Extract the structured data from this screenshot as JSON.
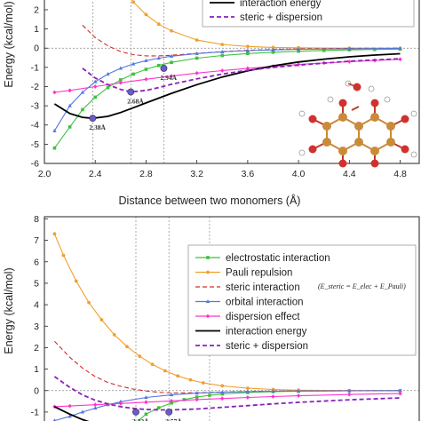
{
  "colors": {
    "electrostatic": "#3cc23c",
    "pauli": "#f0a030",
    "steric": "#d62a2a",
    "orbital": "#5577dd",
    "dispersion": "#ff33cc",
    "interaction": "#000000",
    "steric_dispersion": "#8822bb",
    "minimum_marker": "#6a5acd"
  },
  "chart_data": [
    {
      "type": "line",
      "xlabel": "Distance between two monomers (Å)",
      "ylabel": "Energy (kcal/mol)",
      "xlim": [
        2.0,
        4.95
      ],
      "ylim": [
        -6,
        2.6
      ],
      "xticks": [
        "2.0",
        "2.4",
        "2.8",
        "3.2",
        "3.6",
        "4.0",
        "4.4",
        "4.8"
      ],
      "yticks": [
        "2",
        "1",
        "0",
        "-1",
        "-2",
        "-3",
        "-4",
        "-5",
        "-6"
      ],
      "legend": [
        "interaction energy",
        "steric + dispersion"
      ],
      "legend_position": "top-right",
      "annotations": [
        {
          "text": "2.38Å",
          "x": 2.38,
          "y": -3.65
        },
        {
          "text": "2.68Å",
          "x": 2.68,
          "y": -2.28
        },
        {
          "text": "2.94Å",
          "x": 2.94,
          "y": -1.05
        }
      ],
      "vlines": [
        2.38,
        2.68,
        2.94
      ],
      "series": [
        {
          "key": "electrostatic",
          "style": "solid",
          "marker": "square",
          "x": [
            2.08,
            2.2,
            2.3,
            2.4,
            2.5,
            2.6,
            2.7,
            2.8,
            2.9,
            3.0,
            3.2,
            3.4,
            3.6,
            3.8,
            4.0,
            4.2,
            4.4,
            4.6,
            4.8
          ],
          "y": [
            -5.2,
            -4.1,
            -3.2,
            -2.55,
            -2.05,
            -1.65,
            -1.35,
            -1.1,
            -0.9,
            -0.74,
            -0.52,
            -0.38,
            -0.28,
            -0.21,
            -0.16,
            -0.12,
            -0.09,
            -0.07,
            -0.05
          ]
        },
        {
          "key": "pauli",
          "style": "solid",
          "marker": "circle",
          "x": [
            2.6,
            2.7,
            2.8,
            2.9,
            3.0,
            3.2,
            3.4,
            3.6,
            3.8,
            4.0,
            4.4,
            4.8
          ],
          "y": [
            3.1,
            2.4,
            1.75,
            1.25,
            0.9,
            0.42,
            0.19,
            0.09,
            0.04,
            0.02,
            0.0,
            0.0
          ]
        },
        {
          "key": "steric",
          "style": "dashed",
          "marker": "none",
          "x": [
            2.3,
            2.4,
            2.5,
            2.6,
            2.7,
            2.8,
            2.9,
            3.0,
            3.2,
            3.4,
            3.6,
            3.8,
            4.0,
            4.4,
            4.8
          ],
          "y": [
            1.2,
            0.55,
            0.12,
            -0.18,
            -0.34,
            -0.4,
            -0.4,
            -0.37,
            -0.27,
            -0.18,
            -0.11,
            -0.07,
            -0.04,
            -0.01,
            0.0
          ]
        },
        {
          "key": "orbital",
          "style": "solid",
          "marker": "triangle",
          "x": [
            2.08,
            2.2,
            2.3,
            2.4,
            2.5,
            2.6,
            2.7,
            2.8,
            2.9,
            3.0,
            3.2,
            3.4,
            3.6,
            3.8,
            4.0,
            4.4,
            4.8
          ],
          "y": [
            -4.3,
            -3.0,
            -2.3,
            -1.75,
            -1.35,
            -1.05,
            -0.82,
            -0.65,
            -0.52,
            -0.42,
            -0.28,
            -0.19,
            -0.13,
            -0.09,
            -0.06,
            -0.03,
            -0.01
          ]
        },
        {
          "key": "dispersion",
          "style": "solid",
          "marker": "diamond",
          "x": [
            2.08,
            2.2,
            2.4,
            2.6,
            2.8,
            3.0,
            3.2,
            3.4,
            3.6,
            3.8,
            4.0,
            4.2,
            4.4,
            4.6,
            4.8
          ],
          "y": [
            -2.3,
            -2.2,
            -2.0,
            -1.8,
            -1.62,
            -1.45,
            -1.3,
            -1.17,
            -1.05,
            -0.95,
            -0.85,
            -0.77,
            -0.7,
            -0.64,
            -0.58
          ]
        },
        {
          "key": "interaction",
          "style": "solid",
          "marker": "none",
          "x": [
            2.08,
            2.2,
            2.3,
            2.38,
            2.5,
            2.6,
            2.7,
            2.8,
            2.9,
            3.0,
            3.2,
            3.4,
            3.6,
            3.8,
            4.0,
            4.2,
            4.4,
            4.6,
            4.8
          ],
          "y": [
            -2.9,
            -3.4,
            -3.6,
            -3.65,
            -3.55,
            -3.35,
            -3.1,
            -2.85,
            -2.6,
            -2.35,
            -1.9,
            -1.5,
            -1.18,
            -0.92,
            -0.72,
            -0.57,
            -0.45,
            -0.36,
            -0.29
          ]
        },
        {
          "key": "steric_dispersion",
          "style": "dashed",
          "marker": "none",
          "x": [
            2.3,
            2.4,
            2.5,
            2.6,
            2.68,
            2.8,
            2.9,
            3.0,
            3.2,
            3.4,
            3.6,
            3.8,
            4.0,
            4.4,
            4.8
          ],
          "y": [
            -1.05,
            -1.55,
            -1.9,
            -2.15,
            -2.28,
            -2.2,
            -2.05,
            -1.88,
            -1.6,
            -1.35,
            -1.15,
            -1.0,
            -0.88,
            -0.68,
            -0.55
          ]
        }
      ]
    },
    {
      "type": "line",
      "xlabel": "",
      "ylabel": "Energy (kcal/mol)",
      "xlim": [
        2.0,
        4.95
      ],
      "ylim": [
        -1.5,
        8.1
      ],
      "yticks": [
        "8",
        "7",
        "6",
        "5",
        "4",
        "3",
        "2",
        "1",
        "0",
        "-1"
      ],
      "legend": [
        "electrostatic interaction",
        "Pauli repulsion",
        "steric interaction",
        "orbital interaction",
        "dispersion effect",
        "interaction energy",
        "steric + dispersion"
      ],
      "legend_formula": "(E_steric = E_elec + E_Pauli)",
      "legend_position": "right",
      "annotations": [
        {
          "text": "3.32Å",
          "x": 2.72,
          "y": -1.0
        },
        {
          "text": "3.57Å",
          "x": 2.98,
          "y": -1.0
        }
      ],
      "vlines": [
        2.72,
        2.98,
        3.3
      ],
      "series": [
        {
          "key": "electrostatic",
          "style": "solid",
          "marker": "square",
          "x": [
            2.72,
            2.8,
            2.9,
            3.0,
            3.1,
            3.2,
            3.3,
            3.4,
            3.6,
            3.8,
            4.0,
            4.4,
            4.8
          ],
          "y": [
            -1.5,
            -1.1,
            -0.8,
            -0.58,
            -0.42,
            -0.3,
            -0.22,
            -0.16,
            -0.09,
            -0.05,
            -0.03,
            -0.01,
            0.0
          ]
        },
        {
          "key": "pauli",
          "style": "solid",
          "marker": "circle",
          "x": [
            2.08,
            2.15,
            2.25,
            2.35,
            2.45,
            2.55,
            2.65,
            2.75,
            2.85,
            2.95,
            3.05,
            3.15,
            3.25,
            3.4,
            3.6,
            3.8,
            4.0,
            4.4,
            4.8
          ],
          "y": [
            7.3,
            6.3,
            5.1,
            4.1,
            3.3,
            2.6,
            2.05,
            1.6,
            1.22,
            0.92,
            0.68,
            0.5,
            0.36,
            0.22,
            0.11,
            0.05,
            0.02,
            0.0,
            0.0
          ]
        },
        {
          "key": "steric",
          "style": "dashed",
          "marker": "none",
          "x": [
            2.08,
            2.2,
            2.3,
            2.4,
            2.5,
            2.6,
            2.7,
            2.8,
            2.9,
            3.0,
            3.2,
            3.4,
            3.6,
            4.0,
            4.4,
            4.8
          ],
          "y": [
            2.3,
            1.55,
            1.05,
            0.65,
            0.38,
            0.2,
            0.07,
            -0.02,
            -0.08,
            -0.11,
            -0.1,
            -0.07,
            -0.04,
            -0.01,
            0.0,
            0.0
          ]
        },
        {
          "key": "orbital",
          "style": "solid",
          "marker": "triangle",
          "x": [
            2.08,
            2.2,
            2.3,
            2.4,
            2.5,
            2.6,
            2.8,
            3.0,
            3.2,
            3.4,
            3.6,
            3.8,
            4.0,
            4.4,
            4.8
          ],
          "y": [
            -1.4,
            -1.2,
            -1.0,
            -0.82,
            -0.66,
            -0.52,
            -0.32,
            -0.2,
            -0.12,
            -0.08,
            -0.05,
            -0.03,
            -0.02,
            -0.01,
            0.0
          ]
        },
        {
          "key": "dispersion",
          "style": "solid",
          "marker": "diamond",
          "x": [
            2.08,
            2.2,
            2.4,
            2.6,
            2.8,
            3.0,
            3.2,
            3.4,
            3.6,
            3.8,
            4.0,
            4.4,
            4.8
          ],
          "y": [
            -0.75,
            -0.72,
            -0.66,
            -0.6,
            -0.54,
            -0.48,
            -0.42,
            -0.37,
            -0.32,
            -0.28,
            -0.24,
            -0.18,
            -0.14
          ]
        },
        {
          "key": "interaction",
          "style": "solid",
          "marker": "none",
          "x": [
            2.08,
            2.2,
            2.3,
            2.4,
            2.5
          ],
          "y": [
            -0.75,
            -1.1,
            -1.35,
            -1.55,
            -1.7
          ]
        },
        {
          "key": "steric_dispersion",
          "style": "dashed",
          "marker": "none",
          "x": [
            2.08,
            2.2,
            2.3,
            2.4,
            2.5,
            2.6,
            2.7,
            2.8,
            2.9,
            3.0,
            3.2,
            3.4,
            3.6,
            3.8,
            4.0,
            4.4,
            4.8
          ],
          "y": [
            0.65,
            0.15,
            -0.2,
            -0.45,
            -0.62,
            -0.75,
            -0.83,
            -0.88,
            -0.9,
            -0.9,
            -0.86,
            -0.78,
            -0.7,
            -0.62,
            -0.55,
            -0.43,
            -0.34
          ]
        }
      ]
    }
  ]
}
